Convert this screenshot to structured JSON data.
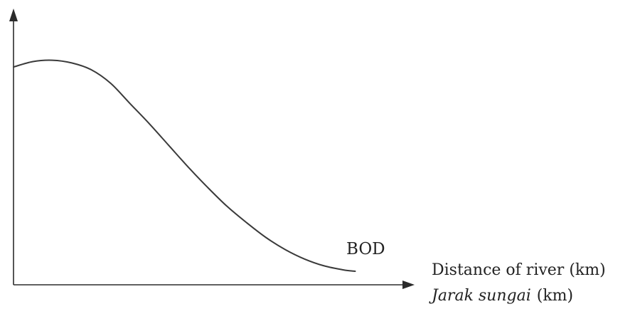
{
  "chart_data": {
    "type": "line",
    "title": "",
    "xlabel": "Distance of river (km)",
    "xlabel_italic": "Jarak sungai",
    "xlabel_unit": "(km)",
    "ylabel": "",
    "grid": false,
    "legend": "none",
    "xlim": [
      0,
      10
    ],
    "ylim": [
      0,
      10
    ],
    "series": [
      {
        "name": "BOD",
        "x": [
          0,
          0.5,
          1,
          1.5,
          2,
          2.5,
          3,
          3.5,
          4,
          4.5,
          5,
          5.5,
          6,
          6.5,
          7,
          7.5,
          8,
          8.5,
          8.8
        ],
        "values": [
          8.05,
          8.25,
          8.3,
          8.2,
          7.95,
          7.45,
          6.7,
          5.95,
          5.15,
          4.35,
          3.6,
          2.9,
          2.3,
          1.75,
          1.3,
          0.95,
          0.7,
          0.55,
          0.5
        ]
      }
    ]
  }
}
